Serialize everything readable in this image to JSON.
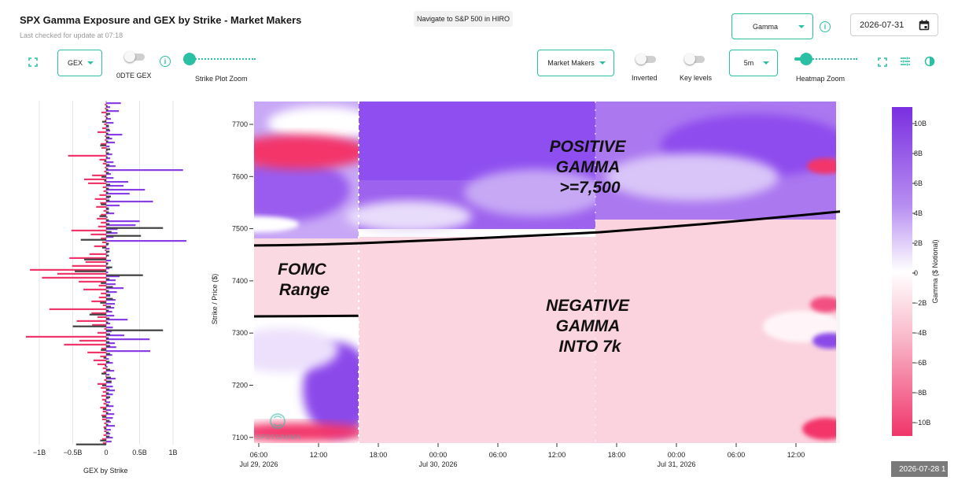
{
  "header": {
    "title": "SPX Gamma Exposure and GEX by Strike - Market Makers",
    "subtitle": "Last checked for update at 07:18",
    "nav_button": "Navigate to S&P 500 in HIRO"
  },
  "top_right": {
    "metric_select": "Gamma",
    "date_value": "2026-07-31"
  },
  "left_controls": {
    "gex_select": "GEX",
    "odte_label": "0DTE GEX",
    "strike_zoom_label": "Strike Plot Zoom",
    "strike_zoom_level": 0.0
  },
  "right_controls": {
    "participant_select": "Market Makers",
    "inverted_label": "Inverted",
    "key_levels_label": "Key levels",
    "interval_select": "5m",
    "heatmap_zoom_label": "Heatmap Zoom",
    "heatmap_zoom_level": 0.08
  },
  "strike_chart": {
    "xlabel": "GEX by Strike",
    "x_ticks": [
      "−1B",
      "−0.5B",
      "0",
      "0.5B",
      "1B"
    ],
    "colors": {
      "positive": "#8a3ee6",
      "negative": "#f0356a",
      "net": "#404040"
    }
  },
  "heatmap": {
    "ylabel": "Strike / Price ($)",
    "y_ticks": [
      "7700",
      "7600",
      "7500",
      "7400",
      "7300",
      "7200",
      "7100"
    ],
    "x_ticks": [
      {
        "time": "06:00",
        "date": "Jul 29, 2026"
      },
      {
        "time": "12:00",
        "date": ""
      },
      {
        "time": "18:00",
        "date": ""
      },
      {
        "time": "00:00",
        "date": "Jul 30, 2026"
      },
      {
        "time": "06:00",
        "date": ""
      },
      {
        "time": "12:00",
        "date": ""
      },
      {
        "time": "18:00",
        "date": ""
      },
      {
        "time": "00:00",
        "date": "Jul 31, 2026"
      },
      {
        "time": "06:00",
        "date": ""
      },
      {
        "time": "12:00",
        "date": ""
      }
    ],
    "annotations": {
      "positive": [
        "POSITIVE",
        "GAMMA",
        ">=7,500"
      ],
      "fomc": [
        "FOMC",
        "Range"
      ],
      "negative": [
        "NEGATIVE",
        "GAMMA",
        "INTO 7k"
      ]
    },
    "watermark": "SPOTGAMMA",
    "colors": {
      "max_positive": "#7a2fe0",
      "zero": "#ffffff",
      "max_negative": "#f0356a"
    }
  },
  "colorbar": {
    "label": "Gamma ($ Notional)",
    "ticks": [
      "10B",
      "8B",
      "6B",
      "4B",
      "2B",
      "0",
      "−2B",
      "−4B",
      "−6B",
      "−8B",
      "−10B"
    ]
  },
  "timestamp_badge": "2026-07-28 1",
  "chart_data": [
    {
      "type": "bar",
      "title": "",
      "xlabel": "GEX by Strike",
      "ylabel": "",
      "xlim": [
        -1.15,
        1.25
      ],
      "orientation": "horizontal",
      "series": [
        {
          "name": "",
          "color": "#8a3ee6",
          "values": [
            0.22,
            0.06,
            0.19,
            0.03,
            0.07,
            0.11,
            0.04,
            0.06,
            0.24,
            0.09,
            0.13,
            0.05,
            0.02,
            0.09,
            0.06,
            0.11,
            0.14,
            1.15,
            0.07,
            0.11,
            0.33,
            0.26,
            0.58,
            0.35,
            0.05,
            0.7,
            0.2,
            0.04,
            0.12,
            0.02,
            0.5,
            0.44,
            0.17,
            0.17,
            0.11,
            1.2,
            0.03,
            0.05,
            0.02,
            0.01,
            0.07,
            0.02,
            0.05,
            0.03,
            0.2,
            0.14,
            0.14,
            0.26,
            0.16,
            0.06,
            0.14,
            0.13,
            0.12,
            0.09,
            0.12,
            0.32,
            0.06,
            0.1,
            0.08,
            0.27,
            0.65,
            0.13,
            0.15,
            0.66,
            0.09,
            0.04,
            0.1,
            0.02,
            0.12,
            0.05,
            0.14,
            0.08,
            0.1,
            0.13,
            0.1,
            0.04,
            0.06,
            0.11,
            0.07,
            0.12,
            0.1,
            0.07,
            0.13,
            0.07,
            0.06,
            0.1,
            0.08
          ]
        },
        {
          "name": "",
          "color": "#f0356a",
          "values": [
            -0.02,
            -0.02,
            -0.07,
            -0.02,
            -0.02,
            -0.03,
            -0.06,
            -0.13,
            -0.02,
            -0.02,
            -0.08,
            -0.07,
            -0.01,
            -0.57,
            -0.1,
            -0.05,
            -0.02,
            -0.03,
            -0.21,
            -0.33,
            -0.27,
            -0.05,
            -0.04,
            -0.1,
            -0.17,
            -0.09,
            -0.15,
            -0.04,
            -0.08,
            -0.14,
            -0.08,
            -0.12,
            -0.52,
            -0.23,
            -0.08,
            -0.06,
            -0.18,
            -0.02,
            -0.25,
            -0.55,
            -0.31,
            -0.51,
            -1.14,
            -0.73,
            -0.96,
            -0.41,
            -0.11,
            -0.34,
            -0.08,
            -0.11,
            -0.22,
            -0.05,
            -0.85,
            -0.22,
            -0.13,
            -0.44,
            -0.21,
            -0.03,
            -0.13,
            -1.2,
            -0.4,
            -0.63,
            -0.07,
            -0.28,
            -0.09,
            -0.19,
            -0.13,
            -0.05,
            -0.04,
            -0.01,
            -0.03,
            -0.13,
            -0.08,
            -0.05,
            -0.07,
            -0.06,
            -0.04,
            -0.09,
            -0.05,
            -0.07,
            -0.06,
            -0.03,
            -0.04,
            -0.03,
            -0.04,
            -0.06,
            -0.05
          ]
        },
        {
          "name": "",
          "color": "#404040",
          "values": [
            0.02,
            0.03,
            0.06,
            0.02,
            -0.06,
            0.04,
            0.05,
            0.03,
            0.05,
            0.03,
            -0.09,
            0.06,
            0.04,
            0.02,
            -0.03,
            0.05,
            0.03,
            0.04,
            -0.07,
            -0.03,
            0.06,
            0.04,
            0.03,
            0.07,
            0.05,
            -0.08,
            0.04,
            0.04,
            -0.1,
            0.04,
            0.05,
            0.85,
            0.08,
            0.52,
            -0.38,
            0.04,
            -0.06,
            0.05,
            0.04,
            -0.33,
            0.03,
            0.09,
            -0.47,
            0.55,
            0.05,
            -0.08,
            0.1,
            0.04,
            0.06,
            0.1,
            -0.09,
            0.07,
            0.04,
            -0.25,
            0.05,
            0.03,
            -0.5,
            0.85,
            0.06,
            0.04,
            0.05,
            0.06,
            -0.08,
            0.06,
            -0.04,
            0.05,
            -0.02,
            0.06,
            -0.07,
            0.07,
            0.08,
            -0.06,
            0.05,
            0.04,
            0.06,
            -0.02,
            0.04,
            -0.05,
            0.03,
            -0.06,
            0.05,
            0.03,
            -0.03,
            0.04,
            0.05,
            -0.09,
            -0.45
          ]
        }
      ]
    },
    {
      "type": "heatmap",
      "title": "",
      "xlabel": "",
      "ylabel": "Strike / Price ($)",
      "ylim": [
        7090,
        7745
      ],
      "x_range": [
        "Jul 29, 2026 05:00",
        "Jul 31, 2026 17:00"
      ],
      "color_range": [
        -11,
        11
      ],
      "color_unit": "B",
      "series": [
        {
          "name": "",
          "x": [
            "Jul 29, 2026 05:00",
            "Jul 29, 2026 16:00",
            "Jul 30, 2026 16:00",
            "Jul 31, 2026 16:30"
          ],
          "y": [
            7468,
            7472,
            7493,
            7533
          ]
        },
        {
          "name": "",
          "x": [
            "Jul 29, 2026 05:00",
            "Jul 29, 2026 16:00"
          ],
          "y": [
            7332,
            7333
          ]
        }
      ]
    }
  ]
}
